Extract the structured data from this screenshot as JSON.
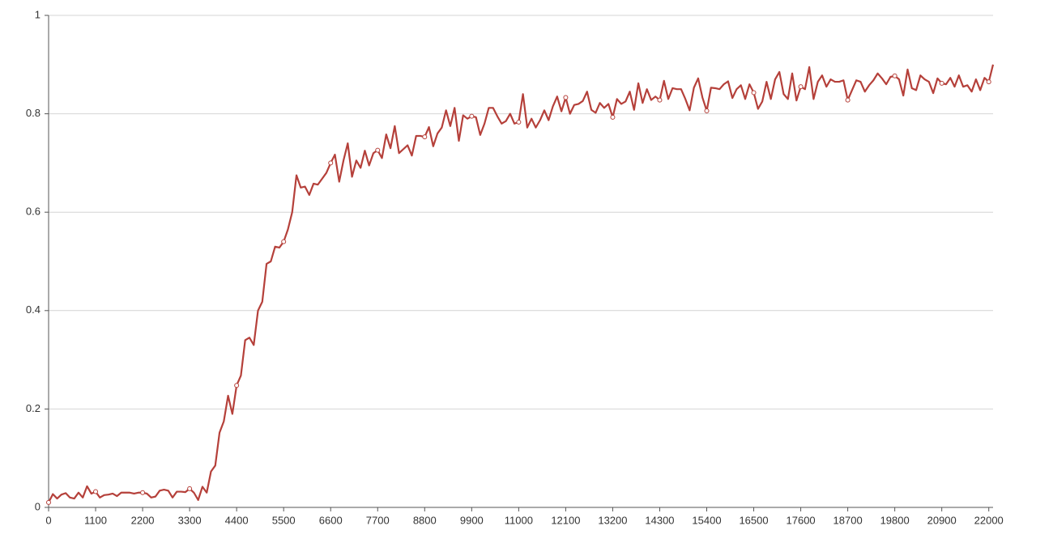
{
  "chart_data": {
    "type": "line",
    "color": "#b5403a",
    "grid": true,
    "x": [
      0,
      100,
      200,
      300,
      400,
      500,
      600,
      700,
      800,
      900,
      1000,
      1100,
      1200,
      1300,
      1400,
      1500,
      1600,
      1700,
      1800,
      1900,
      2000,
      2100,
      2200,
      2300,
      2400,
      2500,
      2600,
      2700,
      2800,
      2900,
      3000,
      3100,
      3200,
      3300,
      3400,
      3500,
      3600,
      3700,
      3800,
      3900,
      4000,
      4100,
      4200,
      4300,
      4400,
      4500,
      4600,
      4700,
      4800,
      4900,
      5000,
      5100,
      5200,
      5300,
      5400,
      5500,
      5600,
      5700,
      5800,
      5900,
      6000,
      6100,
      6200,
      6300,
      6400,
      6500,
      6600,
      6700,
      6800,
      6900,
      7000,
      7100,
      7200,
      7300,
      7400,
      7500,
      7600,
      7700,
      7800,
      7900,
      8000,
      8100,
      8200,
      8300,
      8400,
      8500,
      8600,
      8700,
      8800,
      8900,
      9000,
      9100,
      9200,
      9300,
      9400,
      9500,
      9600,
      9700,
      9800,
      9900,
      10000,
      10100,
      10200,
      10300,
      10400,
      10500,
      10600,
      10700,
      10800,
      10900,
      11000,
      11100,
      11200,
      11300,
      11400,
      11500,
      11600,
      11700,
      11800,
      11900,
      12000,
      12100,
      12200,
      12300,
      12400,
      12500,
      12600,
      12700,
      12800,
      12900,
      13000,
      13100,
      13200,
      13300,
      13400,
      13500,
      13600,
      13700,
      13800,
      13900,
      14000,
      14100,
      14200,
      14300,
      14400,
      14500,
      14600,
      14700,
      14800,
      14900,
      15000,
      15100,
      15200,
      15300,
      15400,
      15500,
      15600,
      15700,
      15800,
      15900,
      16000,
      16100,
      16200,
      16300,
      16400,
      16500,
      16600,
      16700,
      16800,
      16900,
      17000,
      17100,
      17200,
      17300,
      17400,
      17500,
      17600,
      17700,
      17800,
      17900,
      18000,
      18100,
      18200,
      18300,
      18400,
      18500,
      18600,
      18700,
      18800,
      18900,
      19000,
      19100,
      19200,
      19300,
      19400,
      19500,
      19600,
      19700,
      19800,
      19900,
      20000,
      20100,
      20200,
      20300,
      20400,
      20500,
      20600,
      20700,
      20800,
      20900,
      21000,
      21100,
      21200,
      21300,
      21400,
      21500,
      21600,
      21700,
      21800,
      21900,
      22000,
      22100
    ],
    "values": [
      0.01,
      0.027,
      0.018,
      0.026,
      0.029,
      0.02,
      0.018,
      0.03,
      0.02,
      0.043,
      0.028,
      0.032,
      0.02,
      0.025,
      0.026,
      0.028,
      0.023,
      0.03,
      0.03,
      0.03,
      0.028,
      0.03,
      0.03,
      0.028,
      0.02,
      0.022,
      0.034,
      0.036,
      0.034,
      0.02,
      0.032,
      0.032,
      0.031,
      0.038,
      0.03,
      0.015,
      0.042,
      0.03,
      0.073,
      0.085,
      0.152,
      0.175,
      0.227,
      0.19,
      0.248,
      0.268,
      0.34,
      0.345,
      0.33,
      0.4,
      0.418,
      0.495,
      0.5,
      0.53,
      0.528,
      0.54,
      0.565,
      0.6,
      0.675,
      0.65,
      0.652,
      0.635,
      0.658,
      0.656,
      0.668,
      0.68,
      0.7,
      0.717,
      0.662,
      0.705,
      0.74,
      0.672,
      0.705,
      0.69,
      0.725,
      0.695,
      0.72,
      0.726,
      0.71,
      0.758,
      0.73,
      0.775,
      0.72,
      0.728,
      0.736,
      0.715,
      0.755,
      0.755,
      0.753,
      0.773,
      0.734,
      0.76,
      0.772,
      0.807,
      0.775,
      0.812,
      0.745,
      0.797,
      0.79,
      0.795,
      0.793,
      0.757,
      0.78,
      0.812,
      0.812,
      0.795,
      0.78,
      0.785,
      0.8,
      0.78,
      0.783,
      0.84,
      0.772,
      0.79,
      0.772,
      0.787,
      0.807,
      0.787,
      0.815,
      0.835,
      0.805,
      0.833,
      0.8,
      0.818,
      0.82,
      0.826,
      0.845,
      0.808,
      0.802,
      0.822,
      0.812,
      0.82,
      0.793,
      0.83,
      0.82,
      0.825,
      0.845,
      0.808,
      0.862,
      0.822,
      0.85,
      0.828,
      0.835,
      0.828,
      0.867,
      0.83,
      0.852,
      0.85,
      0.85,
      0.83,
      0.807,
      0.853,
      0.872,
      0.833,
      0.806,
      0.853,
      0.852,
      0.85,
      0.86,
      0.866,
      0.832,
      0.85,
      0.858,
      0.83,
      0.86,
      0.843,
      0.81,
      0.825,
      0.865,
      0.83,
      0.87,
      0.885,
      0.84,
      0.83,
      0.882,
      0.827,
      0.855,
      0.85,
      0.895,
      0.83,
      0.865,
      0.878,
      0.855,
      0.87,
      0.865,
      0.865,
      0.868,
      0.828,
      0.848,
      0.868,
      0.865,
      0.845,
      0.858,
      0.868,
      0.882,
      0.872,
      0.86,
      0.875,
      0.877,
      0.87,
      0.837,
      0.89,
      0.852,
      0.848,
      0.878,
      0.87,
      0.865,
      0.842,
      0.872,
      0.862,
      0.86,
      0.873,
      0.855,
      0.878,
      0.855,
      0.858,
      0.845,
      0.87,
      0.848,
      0.873,
      0.865,
      0.9
    ],
    "xlim": [
      0,
      22100
    ],
    "xticks": [
      0,
      1100,
      2200,
      3300,
      4400,
      5500,
      6600,
      7700,
      8800,
      9900,
      11000,
      12100,
      13200,
      14300,
      15400,
      16500,
      17600,
      18700,
      19800,
      20900,
      22000
    ],
    "ylim": [
      0,
      1
    ],
    "yticks": [
      0,
      0.2,
      0.4,
      0.6,
      0.8,
      1
    ]
  }
}
